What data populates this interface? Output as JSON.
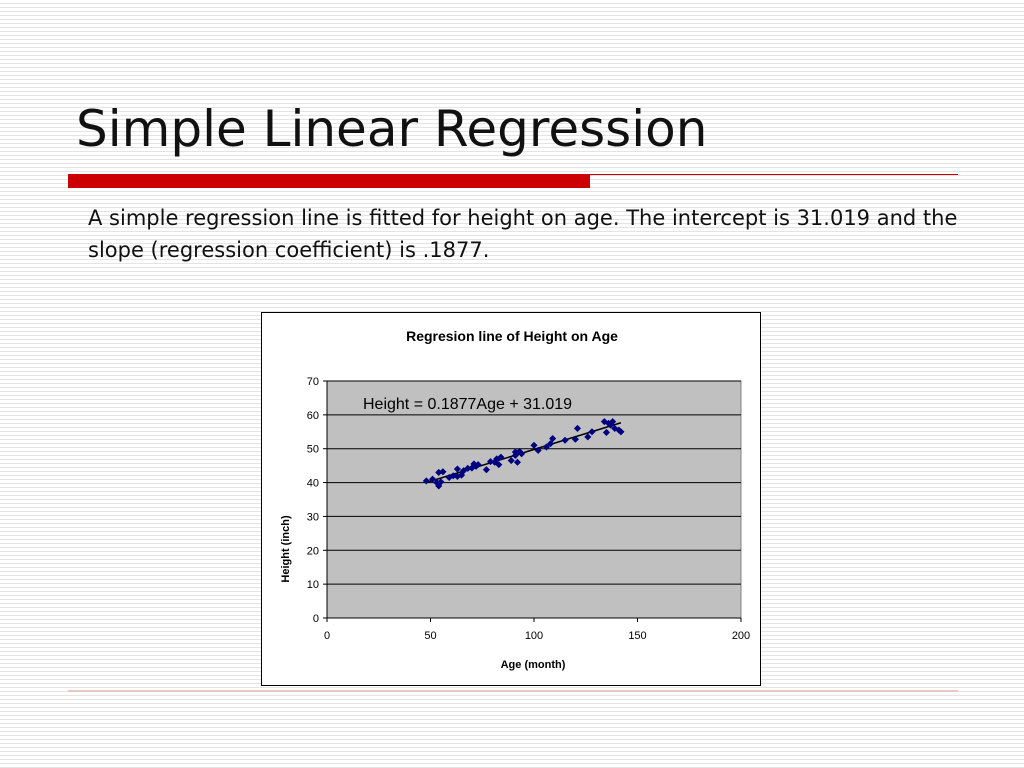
{
  "slide": {
    "title": "Simple Linear Regression",
    "body": "A simple regression line is fitted for height on age. The intercept is 31.019 and the slope (regression coefficient) is .1877."
  },
  "colors": {
    "accent_red": "#cc0000",
    "plot_area": "#c0c0c0",
    "marker": "#000080",
    "line": "#000000"
  },
  "chart_data": {
    "type": "scatter",
    "title": "Regresion line of Height on Age",
    "xlabel": "Age (month)",
    "ylabel": "Height (inch)",
    "xlim": [
      0,
      200
    ],
    "ylim": [
      0,
      70
    ],
    "xticks": [
      0,
      50,
      100,
      150,
      200
    ],
    "yticks": [
      0,
      10,
      20,
      30,
      40,
      50,
      60,
      70
    ],
    "grid": "horizontal",
    "legend": "none",
    "annotation": "Height  = 0.1877Age + 31.019",
    "trendline": {
      "slope": 0.1877,
      "intercept": 31.019,
      "x_range": [
        48,
        142
      ]
    },
    "points": [
      [
        48,
        40.5
      ],
      [
        51,
        41.0
      ],
      [
        53,
        40.0
      ],
      [
        54,
        39.0
      ],
      [
        55,
        40.2
      ],
      [
        54,
        43.0
      ],
      [
        56,
        43.2
      ],
      [
        59,
        41.5
      ],
      [
        61,
        42.0
      ],
      [
        63,
        41.8
      ],
      [
        63,
        44.0
      ],
      [
        65,
        42.2
      ],
      [
        66,
        43.5
      ],
      [
        68,
        44.2
      ],
      [
        70,
        44.3
      ],
      [
        71,
        45.5
      ],
      [
        72,
        44.8
      ],
      [
        73,
        45.3
      ],
      [
        77,
        43.8
      ],
      [
        79,
        46.2
      ],
      [
        81,
        46.0
      ],
      [
        82,
        47.0
      ],
      [
        83,
        45.3
      ],
      [
        84,
        47.5
      ],
      [
        89,
        46.5
      ],
      [
        91,
        48.0
      ],
      [
        91,
        49.0
      ],
      [
        92,
        46.0
      ],
      [
        93,
        49.2
      ],
      [
        94,
        48.5
      ],
      [
        100,
        51.0
      ],
      [
        102,
        49.5
      ],
      [
        106,
        50.5
      ],
      [
        108,
        51.5
      ],
      [
        109,
        53.0
      ],
      [
        115,
        52.5
      ],
      [
        120,
        52.8
      ],
      [
        121,
        56.0
      ],
      [
        126,
        53.5
      ],
      [
        128,
        55.0
      ],
      [
        134,
        58.0
      ],
      [
        135,
        54.8
      ],
      [
        136,
        57.5
      ],
      [
        137,
        57.0
      ],
      [
        138,
        58.0
      ],
      [
        139,
        56.0
      ],
      [
        141,
        55.5
      ],
      [
        142,
        55.0
      ]
    ]
  }
}
